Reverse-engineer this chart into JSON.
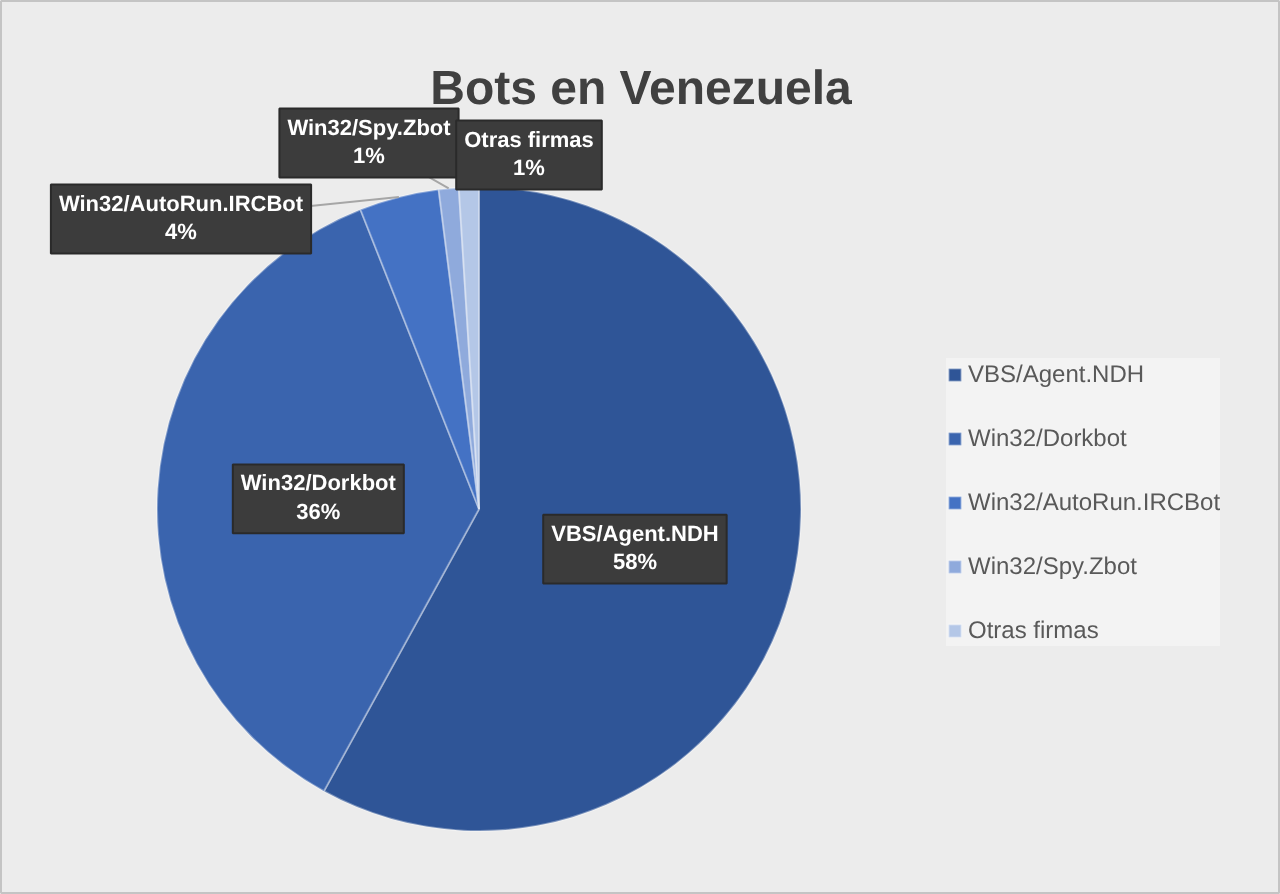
{
  "chart_data": {
    "type": "pie",
    "title": "Bots en Venezuela",
    "categories": [
      "VBS/Agent.NDH",
      "Win32/Dorkbot",
      "Win32/AutoRun.IRCBot",
      "Win32/Spy.Zbot",
      "Otras firmas"
    ],
    "values": [
      58,
      36,
      4,
      1,
      1
    ],
    "colors": [
      "#2f5597",
      "#3a64ae",
      "#4472c4",
      "#8faadc",
      "#b4c7e7"
    ],
    "value_labels": [
      "58%",
      "36%",
      "4%",
      "1%",
      "1%"
    ],
    "legend": "right"
  }
}
